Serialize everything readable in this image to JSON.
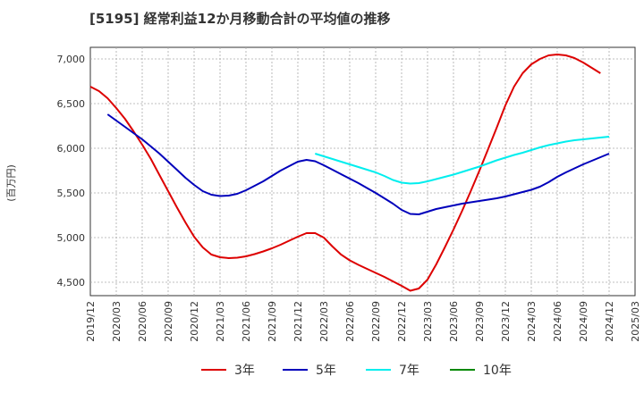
{
  "header": {
    "title": "[5195]  経常利益12か月移動合計の平均値の推移"
  },
  "chart_data": {
    "type": "line",
    "title": "[5195]  経常利益12か月移動合計の平均値の推移",
    "ylabel": "(百万円)",
    "xlabel": "",
    "ylim": [
      4350,
      7130
    ],
    "xlim": [
      "2019/12",
      "2025/03"
    ],
    "grid": true,
    "legend_position": "bottom",
    "y_ticks": [
      4500,
      5000,
      5500,
      6000,
      6500,
      7000
    ],
    "y_tick_labels": [
      "4,500",
      "5,000",
      "5,500",
      "6,000",
      "6,500",
      "7,000"
    ],
    "x_tick_labels": [
      "2019/12",
      "2020/03",
      "2020/06",
      "2020/09",
      "2020/12",
      "2021/03",
      "2021/06",
      "2021/09",
      "2021/12",
      "2022/03",
      "2022/06",
      "2022/09",
      "2022/12",
      "2023/03",
      "2023/06",
      "2023/09",
      "2023/12",
      "2024/03",
      "2024/06",
      "2024/09",
      "2024/12",
      "2025/03"
    ],
    "series": [
      {
        "name": "3年",
        "color": "#dd0000",
        "points": [
          [
            "2019/12",
            6690
          ],
          [
            "2020/01",
            6640
          ],
          [
            "2020/02",
            6560
          ],
          [
            "2020/03",
            6450
          ],
          [
            "2020/04",
            6330
          ],
          [
            "2020/05",
            6190
          ],
          [
            "2020/06",
            6040
          ],
          [
            "2020/07",
            5880
          ],
          [
            "2020/08",
            5700
          ],
          [
            "2020/09",
            5520
          ],
          [
            "2020/10",
            5340
          ],
          [
            "2020/11",
            5170
          ],
          [
            "2020/12",
            5010
          ],
          [
            "2021/01",
            4890
          ],
          [
            "2021/02",
            4810
          ],
          [
            "2021/03",
            4780
          ],
          [
            "2021/04",
            4770
          ],
          [
            "2021/05",
            4775
          ],
          [
            "2021/06",
            4790
          ],
          [
            "2021/07",
            4815
          ],
          [
            "2021/08",
            4845
          ],
          [
            "2021/09",
            4880
          ],
          [
            "2021/10",
            4920
          ],
          [
            "2021/11",
            4965
          ],
          [
            "2021/12",
            5010
          ],
          [
            "2022/01",
            5050
          ],
          [
            "2022/02",
            5050
          ],
          [
            "2022/03",
            5000
          ],
          [
            "2022/04",
            4900
          ],
          [
            "2022/05",
            4810
          ],
          [
            "2022/06",
            4745
          ],
          [
            "2022/07",
            4695
          ],
          [
            "2022/08",
            4650
          ],
          [
            "2022/09",
            4605
          ],
          [
            "2022/10",
            4560
          ],
          [
            "2022/11",
            4510
          ],
          [
            "2022/12",
            4460
          ],
          [
            "2023/01",
            4405
          ],
          [
            "2023/02",
            4430
          ],
          [
            "2023/03",
            4530
          ],
          [
            "2023/04",
            4700
          ],
          [
            "2023/05",
            4890
          ],
          [
            "2023/06",
            5090
          ],
          [
            "2023/07",
            5300
          ],
          [
            "2023/08",
            5520
          ],
          [
            "2023/09",
            5750
          ],
          [
            "2023/10",
            5990
          ],
          [
            "2023/11",
            6230
          ],
          [
            "2023/12",
            6480
          ],
          [
            "2024/01",
            6690
          ],
          [
            "2024/02",
            6840
          ],
          [
            "2024/03",
            6940
          ],
          [
            "2024/04",
            7000
          ],
          [
            "2024/05",
            7040
          ],
          [
            "2024/06",
            7050
          ],
          [
            "2024/07",
            7040
          ],
          [
            "2024/08",
            7010
          ],
          [
            "2024/09",
            6960
          ],
          [
            "2024/10",
            6900
          ],
          [
            "2024/11",
            6840
          ]
        ]
      },
      {
        "name": "5年",
        "color": "#0000bb",
        "points": [
          [
            "2020/02",
            6380
          ],
          [
            "2020/03",
            6310
          ],
          [
            "2020/04",
            6240
          ],
          [
            "2020/05",
            6170
          ],
          [
            "2020/06",
            6100
          ],
          [
            "2020/07",
            6020
          ],
          [
            "2020/08",
            5940
          ],
          [
            "2020/09",
            5850
          ],
          [
            "2020/10",
            5760
          ],
          [
            "2020/11",
            5670
          ],
          [
            "2020/12",
            5590
          ],
          [
            "2021/01",
            5520
          ],
          [
            "2021/02",
            5480
          ],
          [
            "2021/03",
            5465
          ],
          [
            "2021/04",
            5470
          ],
          [
            "2021/05",
            5490
          ],
          [
            "2021/06",
            5530
          ],
          [
            "2021/07",
            5580
          ],
          [
            "2021/08",
            5630
          ],
          [
            "2021/09",
            5690
          ],
          [
            "2021/10",
            5750
          ],
          [
            "2021/11",
            5800
          ],
          [
            "2021/12",
            5850
          ],
          [
            "2022/01",
            5870
          ],
          [
            "2022/02",
            5855
          ],
          [
            "2022/03",
            5810
          ],
          [
            "2022/04",
            5760
          ],
          [
            "2022/05",
            5710
          ],
          [
            "2022/06",
            5660
          ],
          [
            "2022/07",
            5610
          ],
          [
            "2022/08",
            5555
          ],
          [
            "2022/09",
            5500
          ],
          [
            "2022/10",
            5440
          ],
          [
            "2022/11",
            5380
          ],
          [
            "2022/12",
            5310
          ],
          [
            "2023/01",
            5265
          ],
          [
            "2023/02",
            5260
          ],
          [
            "2023/03",
            5290
          ],
          [
            "2023/04",
            5320
          ],
          [
            "2023/05",
            5340
          ],
          [
            "2023/06",
            5360
          ],
          [
            "2023/07",
            5380
          ],
          [
            "2023/08",
            5395
          ],
          [
            "2023/09",
            5410
          ],
          [
            "2023/10",
            5425
          ],
          [
            "2023/11",
            5440
          ],
          [
            "2023/12",
            5460
          ],
          [
            "2024/01",
            5485
          ],
          [
            "2024/02",
            5510
          ],
          [
            "2024/03",
            5535
          ],
          [
            "2024/04",
            5570
          ],
          [
            "2024/05",
            5620
          ],
          [
            "2024/06",
            5680
          ],
          [
            "2024/07",
            5730
          ],
          [
            "2024/08",
            5775
          ],
          [
            "2024/09",
            5820
          ],
          [
            "2024/10",
            5860
          ],
          [
            "2024/11",
            5900
          ],
          [
            "2024/12",
            5940
          ]
        ]
      },
      {
        "name": "7年",
        "color": "#00eeee",
        "points": [
          [
            "2022/02",
            5940
          ],
          [
            "2022/03",
            5910
          ],
          [
            "2022/04",
            5880
          ],
          [
            "2022/05",
            5850
          ],
          [
            "2022/06",
            5820
          ],
          [
            "2022/07",
            5790
          ],
          [
            "2022/08",
            5760
          ],
          [
            "2022/09",
            5730
          ],
          [
            "2022/10",
            5690
          ],
          [
            "2022/11",
            5645
          ],
          [
            "2022/12",
            5615
          ],
          [
            "2023/01",
            5605
          ],
          [
            "2023/02",
            5610
          ],
          [
            "2023/03",
            5630
          ],
          [
            "2023/04",
            5655
          ],
          [
            "2023/05",
            5680
          ],
          [
            "2023/06",
            5705
          ],
          [
            "2023/07",
            5735
          ],
          [
            "2023/08",
            5765
          ],
          [
            "2023/09",
            5795
          ],
          [
            "2023/10",
            5830
          ],
          [
            "2023/11",
            5865
          ],
          [
            "2023/12",
            5895
          ],
          [
            "2024/01",
            5925
          ],
          [
            "2024/02",
            5950
          ],
          [
            "2024/03",
            5980
          ],
          [
            "2024/04",
            6010
          ],
          [
            "2024/05",
            6035
          ],
          [
            "2024/06",
            6055
          ],
          [
            "2024/07",
            6075
          ],
          [
            "2024/08",
            6090
          ],
          [
            "2024/09",
            6100
          ],
          [
            "2024/10",
            6110
          ],
          [
            "2024/11",
            6120
          ],
          [
            "2024/12",
            6130
          ]
        ]
      },
      {
        "name": "10年",
        "color": "#008800",
        "points": []
      }
    ]
  }
}
